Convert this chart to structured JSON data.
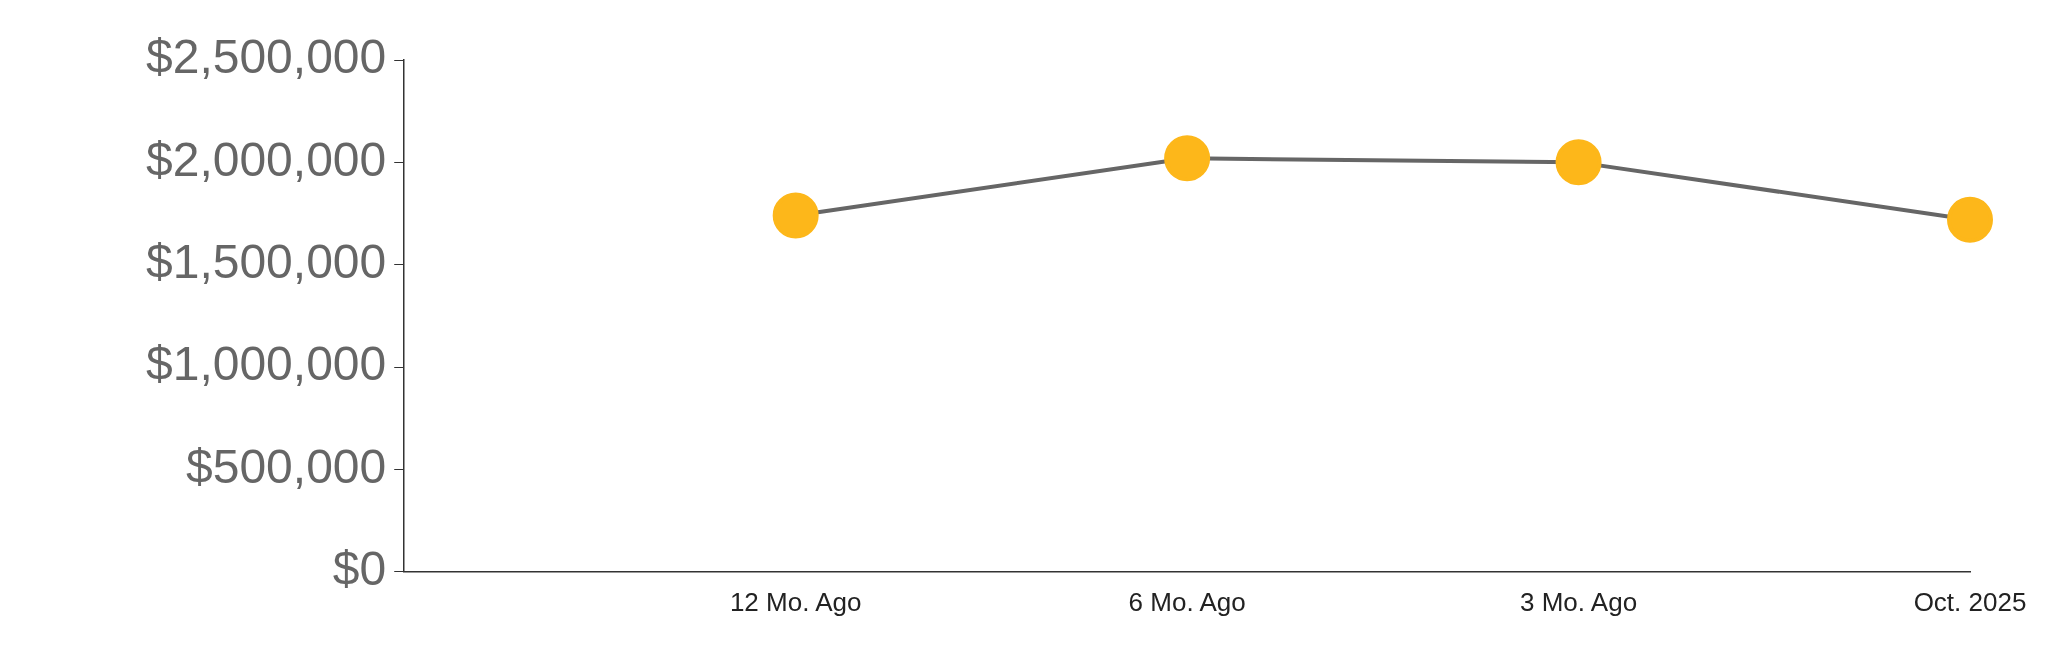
{
  "chart_data": {
    "type": "line",
    "categories": [
      null,
      "12 Mo. Ago",
      "6 Mo. Ago",
      "3 Mo. Ago",
      "Oct. 2025"
    ],
    "series": [
      {
        "color": "#fdb71a",
        "values": [
          null,
          1740000,
          2020000,
          2000000,
          1720000
        ]
      }
    ],
    "ylim": [
      0,
      2500000
    ],
    "yticks": [
      {
        "value": 0,
        "label": "$0"
      },
      {
        "value": 500000,
        "label": "$500,000"
      },
      {
        "value": 1000000,
        "label": "$1,000,000"
      },
      {
        "value": 1500000,
        "label": "$1,500,000"
      },
      {
        "value": 2000000,
        "label": "$2,000,000"
      },
      {
        "value": 2500000,
        "label": "$2,500,000"
      }
    ],
    "grid": false,
    "legend": false,
    "marker": "circle",
    "line_style": "solid"
  }
}
